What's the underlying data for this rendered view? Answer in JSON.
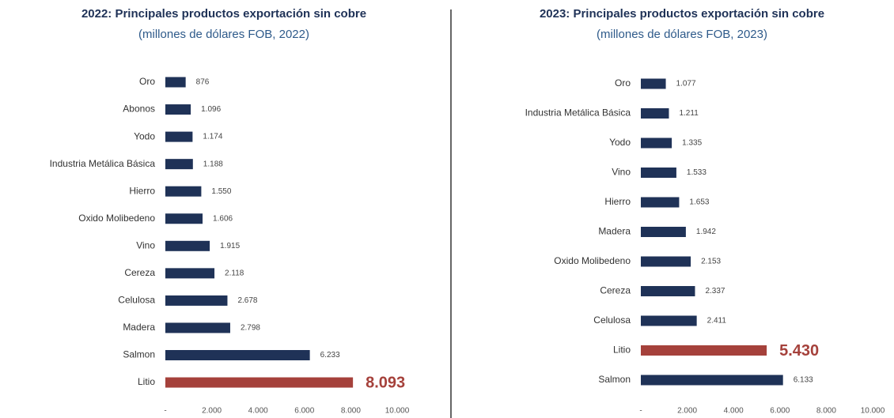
{
  "chart_data": [
    {
      "type": "barh",
      "title": "2022: Principales productos exportación sin cobre",
      "subtitle": "(millones de dólares FOB, 2022)",
      "categories": [
        "Oro",
        "Abonos",
        "Yodo",
        "Industria Metálica Básica",
        "Hierro",
        "Oxido Molibedeno",
        "Vino",
        "Cereza",
        "Celulosa",
        "Madera",
        "Salmon",
        "Litio"
      ],
      "values": [
        876,
        1096,
        1174,
        1188,
        1550,
        1606,
        1915,
        2118,
        2678,
        2798,
        6233,
        8093
      ],
      "value_labels": [
        "876",
        "1.096",
        "1.174",
        "1.188",
        "1.550",
        "1.606",
        "1.915",
        "2.118",
        "2.678",
        "2.798",
        "6.233",
        "8.093"
      ],
      "color": "#1f3257",
      "colors": [
        "#1f3257",
        "#1f3257",
        "#1f3257",
        "#1f3257",
        "#1f3257",
        "#1f3257",
        "#1f3257",
        "#1f3257",
        "#1f3257",
        "#1f3257",
        "#1f3257",
        "#a5413b"
      ],
      "xlim": [
        0,
        10000
      ],
      "xticks": [
        {
          "value": 0,
          "label": "-"
        },
        {
          "value": 2000,
          "label": "2.000"
        },
        {
          "value": 4000,
          "label": "4.000"
        },
        {
          "value": 6000,
          "label": "6.000"
        },
        {
          "value": 8000,
          "label": "8.000"
        },
        {
          "value": 10000,
          "label": "10.000"
        }
      ]
    },
    {
      "type": "barh",
      "title": "2023: Principales productos exportación sin cobre",
      "subtitle": "(millones de dólares FOB, 2023)",
      "categories": [
        "Oro",
        "Industria Metálica Básica",
        "Yodo",
        "Vino",
        "Hierro",
        "Madera",
        "Oxido Molibedeno",
        "Cereza",
        "Celulosa",
        "Litio",
        "Salmon"
      ],
      "values": [
        1077,
        1211,
        1335,
        1533,
        1653,
        1942,
        2153,
        2337,
        2411,
        5430,
        6133
      ],
      "value_labels": [
        "1.077",
        "1.211",
        "1.335",
        "1.533",
        "1.653",
        "1.942",
        "2.153",
        "2.337",
        "2.411",
        "5.430",
        "6.133"
      ],
      "color": "#1f3257",
      "colors": [
        "#1f3257",
        "#1f3257",
        "#1f3257",
        "#1f3257",
        "#1f3257",
        "#1f3257",
        "#1f3257",
        "#1f3257",
        "#1f3257",
        "#a5413b",
        "#1f3257"
      ],
      "xlim": [
        0,
        10000
      ],
      "xticks": [
        {
          "value": 0,
          "label": "-"
        },
        {
          "value": 2000,
          "label": "2.000"
        },
        {
          "value": 4000,
          "label": "4.000"
        },
        {
          "value": 6000,
          "label": "6.000"
        },
        {
          "value": 8000,
          "label": "8.000"
        },
        {
          "value": 10000,
          "label": "10.000"
        }
      ]
    }
  ]
}
